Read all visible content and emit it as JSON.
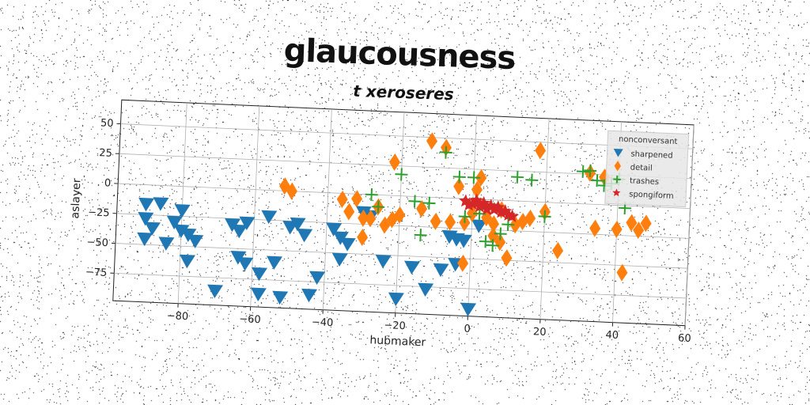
{
  "chart_data": {
    "type": "scatter",
    "title": "glaucousness",
    "subtitle": "t xeroseres",
    "xlabel": "hubmaker",
    "ylabel": "aslayer",
    "xlim": [
      -98,
      60
    ],
    "ylim": [
      -98,
      70
    ],
    "xticks": [
      -80,
      -60,
      -40,
      -20,
      0,
      20,
      40,
      60
    ],
    "yticks": [
      -75,
      -50,
      -25,
      0,
      25,
      50
    ],
    "xtick_labels": [
      "−80",
      "−60",
      "−40",
      "−20",
      "0",
      "20",
      "40",
      "60"
    ],
    "ytick_labels": [
      "−75",
      "−50",
      "−25",
      "0",
      "25",
      "50"
    ],
    "grid": true,
    "legend": {
      "title": "nonconversant",
      "position": "top-right",
      "entries": [
        "sharpened",
        "detail",
        "trashes",
        "spongiform"
      ]
    },
    "series": [
      {
        "name": "sharpened",
        "marker": "triangle-down",
        "color": "#1f77b4",
        "points": [
          [
            -90,
            -16
          ],
          [
            -86,
            -15
          ],
          [
            -90,
            -28
          ],
          [
            -88,
            -36
          ],
          [
            -90,
            -45
          ],
          [
            -84,
            -48
          ],
          [
            -82,
            -30
          ],
          [
            -80,
            -37
          ],
          [
            -80,
            -20
          ],
          [
            -78,
            -40
          ],
          [
            -76,
            -45
          ],
          [
            -78,
            -62
          ],
          [
            -70,
            -86
          ],
          [
            -66,
            -30
          ],
          [
            -64,
            -35
          ],
          [
            -62,
            -28
          ],
          [
            -64,
            -57
          ],
          [
            -62,
            -62
          ],
          [
            -58,
            -70
          ],
          [
            -58,
            -87
          ],
          [
            -56,
            -22
          ],
          [
            -54,
            -60
          ],
          [
            -52,
            -89
          ],
          [
            -50,
            -30
          ],
          [
            -46,
            -36
          ],
          [
            -48,
            -27
          ],
          [
            -42,
            -71
          ],
          [
            -44,
            -86
          ],
          [
            -38,
            -30
          ],
          [
            -36,
            -37
          ],
          [
            -36,
            -55
          ],
          [
            -34,
            -42
          ],
          [
            -30,
            -15
          ],
          [
            -28,
            -18
          ],
          [
            -24,
            -55
          ],
          [
            -20,
            -86
          ],
          [
            -16,
            -59
          ],
          [
            -12,
            -77
          ],
          [
            -8,
            -60
          ],
          [
            -6,
            -32
          ],
          [
            -4,
            -34
          ],
          [
            -2,
            -35
          ],
          [
            -4,
            -55
          ],
          [
            0,
            -92
          ],
          [
            2,
            -22
          ]
        ]
      },
      {
        "name": "detail",
        "marker": "diamond",
        "color": "#ff7f0e",
        "points": [
          [
            -52,
            4
          ],
          [
            -50,
            0
          ],
          [
            -36,
            -5
          ],
          [
            -34,
            -15
          ],
          [
            -32,
            -4
          ],
          [
            -30,
            -20
          ],
          [
            -30,
            -36
          ],
          [
            -28,
            -20
          ],
          [
            -26,
            -10
          ],
          [
            -24,
            -25
          ],
          [
            -22,
            -20
          ],
          [
            -20,
            -16
          ],
          [
            -14,
            -10
          ],
          [
            -12,
            47
          ],
          [
            -10,
            -20
          ],
          [
            -8,
            42
          ],
          [
            -6,
            -20
          ],
          [
            -4,
            10
          ],
          [
            -2,
            -20
          ],
          [
            0,
            -12
          ],
          [
            1,
            8
          ],
          [
            2,
            18
          ],
          [
            4,
            -15
          ],
          [
            6,
            -20
          ],
          [
            8,
            -8
          ],
          [
            -2,
            -54
          ],
          [
            6,
            -30
          ],
          [
            8,
            -35
          ],
          [
            10,
            -48
          ],
          [
            12,
            -20
          ],
          [
            16,
            -14
          ],
          [
            20,
            -8
          ],
          [
            14,
            -17
          ],
          [
            18,
            43
          ],
          [
            24,
            -40
          ],
          [
            -22,
            28
          ],
          [
            32,
            26
          ],
          [
            36,
            23
          ],
          [
            34,
            -20
          ],
          [
            40,
            -20
          ],
          [
            44,
            -14
          ],
          [
            48,
            -14
          ],
          [
            46,
            -20
          ],
          [
            42,
            -56
          ]
        ]
      },
      {
        "name": "trashes",
        "marker": "plus",
        "color": "#2ca02c",
        "points": [
          [
            -28,
            0
          ],
          [
            -26,
            -10
          ],
          [
            -16,
            -4
          ],
          [
            -20,
            18
          ],
          [
            -12,
            -5
          ],
          [
            -14,
            -32
          ],
          [
            -8,
            38
          ],
          [
            -4,
            18
          ],
          [
            -2,
            -15
          ],
          [
            0,
            18
          ],
          [
            2,
            -12
          ],
          [
            4,
            -35
          ],
          [
            6,
            -38
          ],
          [
            8,
            -28
          ],
          [
            10,
            -20
          ],
          [
            12,
            20
          ],
          [
            16,
            18
          ],
          [
            20,
            -12
          ],
          [
            30,
            27
          ],
          [
            32,
            28
          ],
          [
            34,
            20
          ],
          [
            36,
            16
          ],
          [
            38,
            18
          ],
          [
            40,
            22
          ],
          [
            42,
            -2
          ]
        ]
      },
      {
        "name": "spongiform",
        "marker": "star",
        "color": "#d62728",
        "points": [
          [
            -2,
            -2
          ],
          [
            0,
            -4
          ],
          [
            2,
            -6
          ],
          [
            4,
            -8
          ],
          [
            6,
            -8
          ],
          [
            8,
            -10
          ],
          [
            10,
            -12
          ],
          [
            3,
            -3
          ],
          [
            5,
            -5
          ],
          [
            7,
            -6
          ],
          [
            9,
            -9
          ],
          [
            11,
            -13
          ],
          [
            1,
            -1
          ],
          [
            -1,
            -5
          ]
        ]
      }
    ]
  }
}
